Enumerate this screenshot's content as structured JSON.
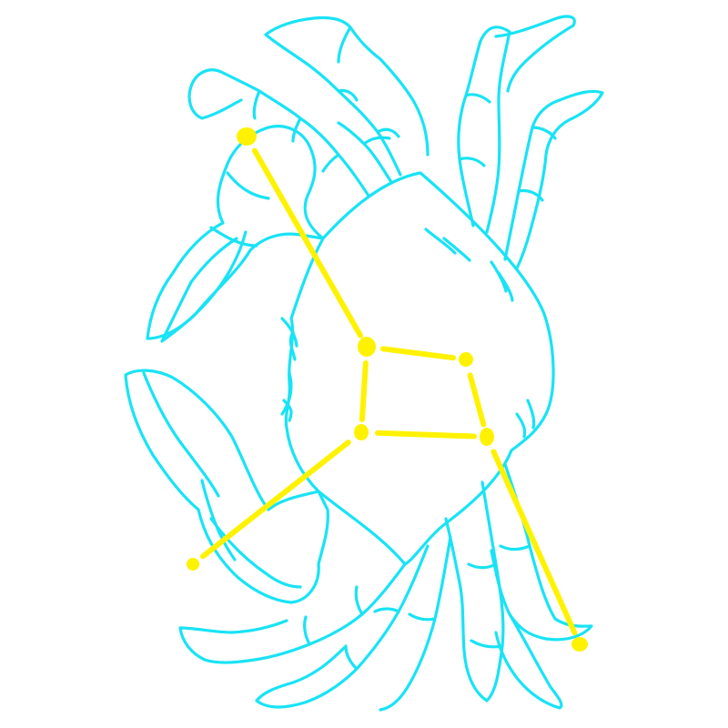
{
  "figure": {
    "outline_color": "#19e3f5",
    "line_color": "#fff200",
    "background": "#ffffff",
    "stars": [
      {
        "name": "star-top-left-claw"
      },
      {
        "name": "star-upper-left-body"
      },
      {
        "name": "star-upper-right-body"
      },
      {
        "name": "star-lower-left-body"
      },
      {
        "name": "star-lower-right-body"
      },
      {
        "name": "star-lower-left-claw"
      },
      {
        "name": "star-lower-right-leg"
      }
    ],
    "connections": [
      [
        0,
        1
      ],
      [
        1,
        2
      ],
      [
        1,
        3
      ],
      [
        2,
        4
      ],
      [
        3,
        4
      ],
      [
        3,
        5
      ],
      [
        4,
        6
      ]
    ]
  }
}
